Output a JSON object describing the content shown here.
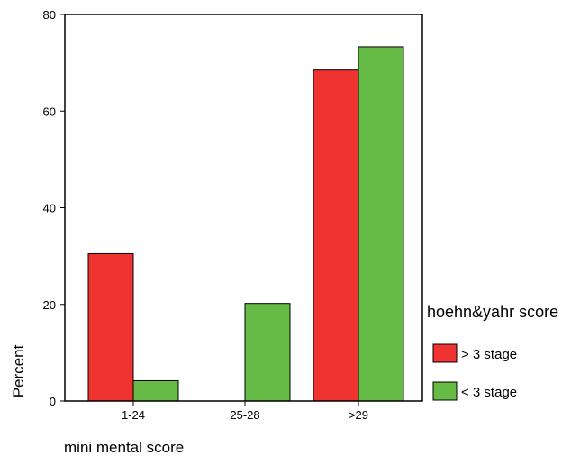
{
  "chart_data": {
    "type": "bar",
    "categories": [
      "1-24",
      "25-28",
      ">29"
    ],
    "series": [
      {
        "name": "> 3 stage",
        "color": "#ee3330",
        "values": [
          30.5,
          0,
          68.5
        ]
      },
      {
        "name": "< 3 stage",
        "color": "#66bb46",
        "values": [
          4.2,
          20.2,
          73.3
        ]
      }
    ],
    "ylim": [
      0,
      80
    ],
    "yticks": [
      0,
      20,
      40,
      60,
      80
    ],
    "xlabel": "mini mental score",
    "ylabel": "Percent",
    "legend_title": "hoehn&yahr score",
    "legend_placement": "right",
    "grid": false
  }
}
